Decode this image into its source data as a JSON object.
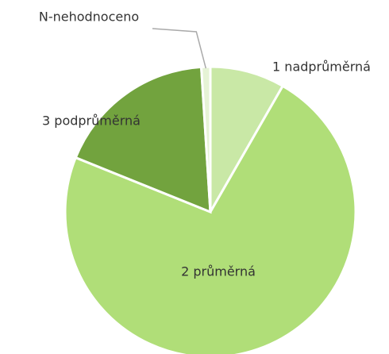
{
  "chart_data": {
    "type": "pie",
    "categories": [
      "1 nadprůměrná",
      "2 průměrná",
      "3 podprůměrná",
      "N-nehodnoceno"
    ],
    "values": [
      8.3,
      72.8,
      17.9,
      1.0
    ],
    "colors": [
      "#c9e8a6",
      "#b0de78",
      "#72a33e",
      "#e6f3d6"
    ]
  }
}
